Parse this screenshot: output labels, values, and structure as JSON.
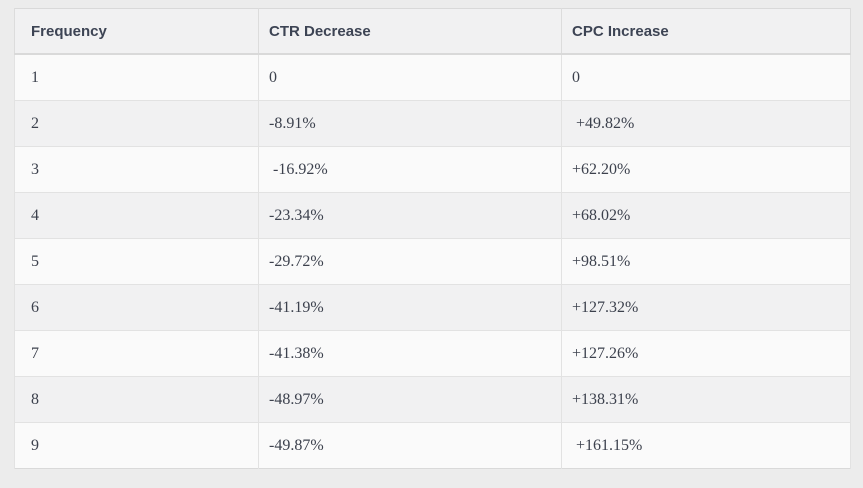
{
  "table": {
    "columns": [
      "Frequency",
      "CTR Decrease",
      "CPC Increase"
    ],
    "rows": [
      [
        "1",
        "0",
        "0"
      ],
      [
        "2",
        "-8.91%",
        " +49.82%"
      ],
      [
        "3",
        " -16.92%",
        "+62.20%"
      ],
      [
        "4",
        "-23.34%",
        "+68.02%"
      ],
      [
        "5",
        "-29.72%",
        "+98.51%"
      ],
      [
        "6",
        "-41.19%",
        "+127.32%"
      ],
      [
        "7",
        "-41.38%",
        "+127.26%"
      ],
      [
        "8",
        "-48.97%",
        "+138.31%"
      ],
      [
        "9",
        "-49.87%",
        " +161.15%"
      ]
    ]
  },
  "colors": {
    "page_background": "#ececec",
    "header_background": "#f1f1f2",
    "row_background": "#fafafa",
    "row_alt_background": "#f1f1f2",
    "header_text": "#3d4454",
    "body_text": "#3c414d",
    "border": "#d9d9d9",
    "row_border": "#e2e2e2"
  },
  "chart_data": {
    "type": "table",
    "title": "",
    "columns": [
      "Frequency",
      "CTR Decrease",
      "CPC Increase"
    ],
    "categories": [
      1,
      2,
      3,
      4,
      5,
      6,
      7,
      8,
      9
    ],
    "series": [
      {
        "name": "CTR Decrease (%)",
        "values": [
          0,
          -8.91,
          -16.92,
          -23.34,
          -29.72,
          -41.19,
          -41.38,
          -48.97,
          -49.87
        ]
      },
      {
        "name": "CPC Increase (%)",
        "values": [
          0,
          49.82,
          62.2,
          68.02,
          98.51,
          127.32,
          127.26,
          138.31,
          161.15
        ]
      }
    ],
    "rows": [
      [
        "1",
        "0",
        "0"
      ],
      [
        "2",
        "-8.91%",
        "+49.82%"
      ],
      [
        "3",
        "-16.92%",
        "+62.20%"
      ],
      [
        "4",
        "-23.34%",
        "+68.02%"
      ],
      [
        "5",
        "-29.72%",
        "+98.51%"
      ],
      [
        "6",
        "-41.19%",
        "+127.32%"
      ],
      [
        "7",
        "-41.38%",
        "+127.26%"
      ],
      [
        "8",
        "-48.97%",
        "+138.31%"
      ],
      [
        "9",
        "-49.87%",
        "+161.15%"
      ]
    ]
  }
}
